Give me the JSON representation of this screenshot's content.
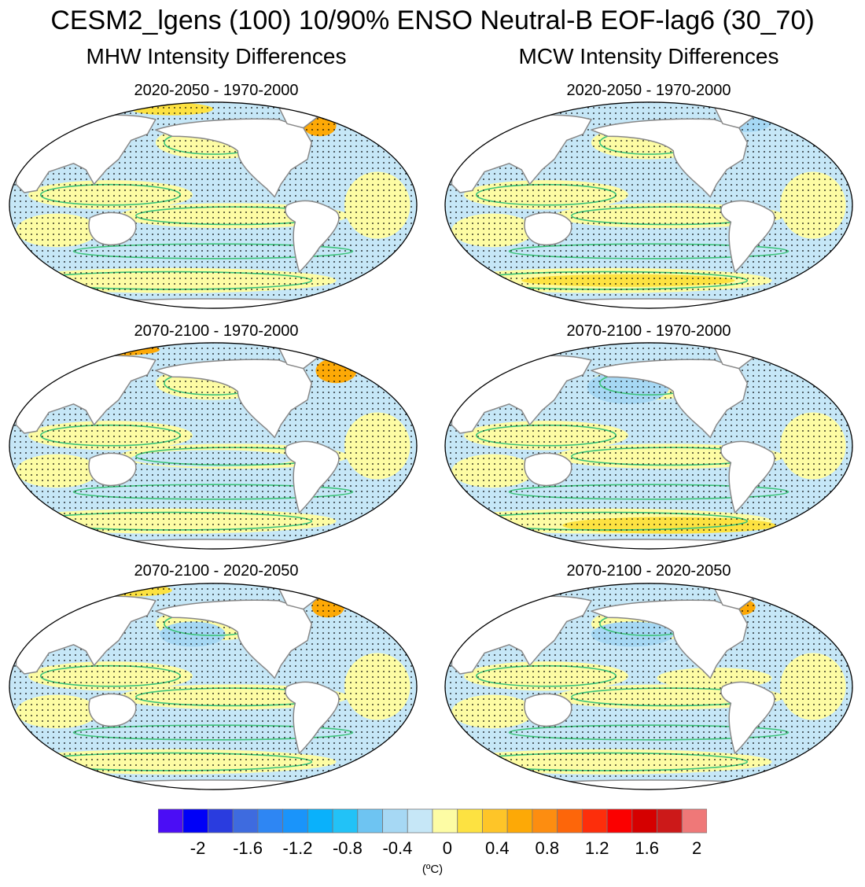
{
  "title": "CESM2_lgens (100) 10/90% ENSO Neutral-B EOF-lag6 (30_70)",
  "columns": [
    {
      "title": "MHW Intensity Differences"
    },
    {
      "title": "MCW Intensity Differences"
    }
  ],
  "panels": [
    {
      "title": "2020-2050 - 1970-2000",
      "variant": "mhw1"
    },
    {
      "title": "2020-2050 - 1970-2000",
      "variant": "mcw1"
    },
    {
      "title": "2070-2100 - 1970-2000",
      "variant": "mhw2"
    },
    {
      "title": "2070-2100 - 1970-2000",
      "variant": "mcw2"
    },
    {
      "title": "2070-2100 - 2020-2050",
      "variant": "mhw3"
    },
    {
      "title": "2070-2100 - 2020-2050",
      "variant": "mcw3"
    }
  ],
  "colorbar": {
    "colors": [
      "#4b0df5",
      "#0000f7",
      "#2a3cdf",
      "#3e6bdf",
      "#2e86f3",
      "#1a94fa",
      "#0ab1fb",
      "#22c2f7",
      "#6ec4f2",
      "#a6d8f4",
      "#c6e7f7",
      "#fdfca4",
      "#fde241",
      "#fec528",
      "#fda906",
      "#fd8d10",
      "#fd660a",
      "#fd2e0b",
      "#fb0000",
      "#d50000",
      "#cc1919",
      "#ef7878"
    ],
    "labels": [
      "-2",
      "-1.6",
      "-1.2",
      "-0.8",
      "-0.4",
      "0",
      "0.4",
      "0.8",
      "1.2",
      "1.6",
      "2"
    ],
    "units": "(ºC)"
  },
  "map_colors": {
    "ocean_light_blue": "#c6e7f7",
    "ocean_blue": "#a6d8f4",
    "ocean_yellow": "#fdfca4",
    "ocean_gold": "#fde241",
    "ocean_orange": "#fda906",
    "contour": "#3cc47a",
    "coast": "#888888",
    "land": "#ffffff",
    "stipple": "#000000"
  }
}
